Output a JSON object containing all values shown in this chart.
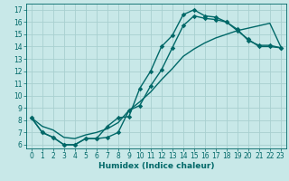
{
  "title": "",
  "xlabel": "Humidex (Indice chaleur)",
  "background_color": "#c8e8e8",
  "grid_color": "#a8d0d0",
  "line_color": "#006868",
  "xlim": [
    -0.5,
    23.5
  ],
  "ylim": [
    5.7,
    17.5
  ],
  "xticks": [
    0,
    1,
    2,
    3,
    4,
    5,
    6,
    7,
    8,
    9,
    10,
    11,
    12,
    13,
    14,
    15,
    16,
    17,
    18,
    19,
    20,
    21,
    22,
    23
  ],
  "yticks": [
    6,
    7,
    8,
    9,
    10,
    11,
    12,
    13,
    14,
    15,
    16,
    17
  ],
  "line1_x": [
    0,
    1,
    2,
    3,
    4,
    5,
    6,
    7,
    8,
    9,
    10,
    11,
    12,
    13,
    14,
    15,
    16,
    17,
    18,
    19,
    20,
    21,
    22,
    23
  ],
  "line1_y": [
    8.2,
    7.0,
    6.6,
    6.0,
    6.0,
    6.5,
    6.5,
    7.5,
    8.2,
    8.3,
    10.6,
    12.0,
    14.0,
    14.9,
    16.6,
    17.0,
    16.5,
    16.4,
    16.0,
    15.3,
    14.6,
    14.0,
    14.0,
    13.9
  ],
  "line2_x": [
    0,
    1,
    2,
    3,
    4,
    5,
    6,
    7,
    8,
    9,
    10,
    11,
    12,
    13,
    14,
    15,
    16,
    17,
    18,
    19,
    20,
    21,
    22,
    23
  ],
  "line2_y": [
    8.2,
    7.0,
    6.6,
    6.0,
    6.0,
    6.5,
    6.5,
    6.6,
    7.0,
    8.8,
    9.2,
    10.8,
    12.1,
    13.9,
    15.7,
    16.5,
    16.3,
    16.2,
    16.0,
    15.4,
    14.5,
    14.1,
    14.1,
    13.9
  ],
  "line3_x": [
    0,
    1,
    2,
    3,
    4,
    5,
    6,
    7,
    8,
    9,
    10,
    11,
    12,
    13,
    14,
    15,
    16,
    17,
    18,
    19,
    20,
    21,
    22,
    23
  ],
  "line3_y": [
    8.2,
    7.5,
    7.2,
    6.6,
    6.5,
    6.8,
    7.0,
    7.3,
    7.8,
    8.8,
    9.5,
    10.3,
    11.3,
    12.2,
    13.2,
    13.8,
    14.3,
    14.7,
    15.0,
    15.3,
    15.5,
    15.7,
    15.9,
    14.0
  ],
  "xlabel_fontsize": 6.5,
  "tick_fontsize": 5.5,
  "linewidth": 1.0,
  "markersize": 2.8
}
